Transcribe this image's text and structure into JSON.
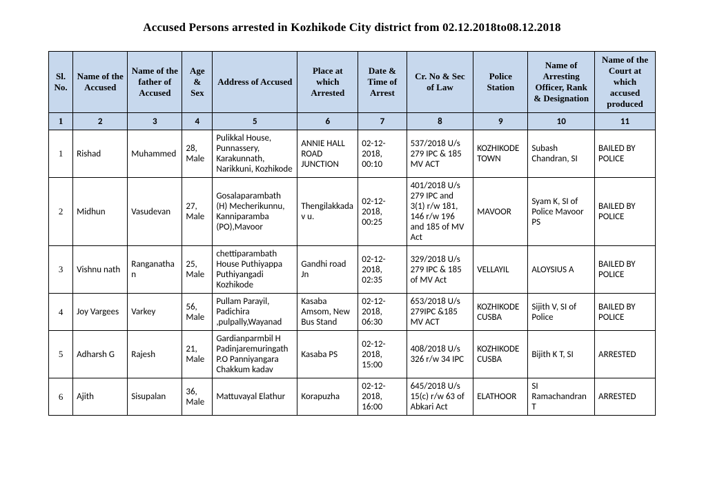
{
  "title": "Accused Persons arrested in    Kozhikode City    district from   02.12.2018to08.12.2018",
  "columns": [
    "Sl. No.",
    "Name of the Accused",
    "Name of the father of Accused",
    "Age & Sex",
    "Address of Accused",
    "Place at which Arrested",
    "Date & Time of Arrest",
    "Cr. No & Sec of Law",
    "Police Station",
    "Name of Arresting Officer, Rank & Designation",
    "Name of the Court at which accused produced"
  ],
  "numrow": [
    "1",
    "2",
    "3",
    "4",
    "5",
    "6",
    "7",
    "8",
    "9",
    "10",
    "11"
  ],
  "rows": [
    {
      "sl": "1",
      "name": "Rishad",
      "father": "Muhammed",
      "age_sex": "28, Male",
      "address": "Pulikkal House, Punnassery, Karakunnath, Narikkuni, Kozhikode",
      "place": "ANNIE HALL ROAD JUNCTION",
      "datetime": "02-12-2018, 00:10",
      "crno": "537/2018 U/s 279 IPC & 185 MV ACT",
      "station": "KOZHIKODE TOWN",
      "officer": "Subash Chandran, SI",
      "court": "BAILED BY POLICE"
    },
    {
      "sl": "2",
      "name": "Midhun",
      "father": "Vasudevan",
      "age_sex": "27, Male",
      "address": "Gosalaparambath (H) Mecherikunnu, Kanniparamba (PO),Mavoor",
      "place": "Thengilakkadav u.",
      "datetime": "02-12-2018, 00:25",
      "crno": "401/2018 U/s 279 IPC and 3(1) r/w 181, 146 r/w 196 and 185 of MV Act",
      "station": "MAVOOR",
      "officer": "Syam K, SI of Police Mavoor PS",
      "court": "BAILED BY POLICE"
    },
    {
      "sl": "3",
      "name": "Vishnu nath",
      "father": "Ranganathan",
      "age_sex": "25, Male",
      "address": "chettiparambath House Puthiyappa Puthiyangadi Kozhikode",
      "place": "Gandhi road Jn",
      "datetime": "02-12-2018, 02:35",
      "crno": "329/2018 U/s 279 IPC & 185 of MV Act",
      "station": "VELLAYIL",
      "officer": "ALOYSIUS A",
      "court": "BAILED BY POLICE"
    },
    {
      "sl": "4",
      "name": "Joy Vargees",
      "father": "Varkey",
      "age_sex": "56, Male",
      "address": "Pullam Parayil, Padichira ,pulpally,Wayanad",
      "place": "Kasaba Amsom, New Bus Stand",
      "datetime": "02-12-2018, 06:30",
      "crno": "653/2018 U/s 279IPC &185 MV ACT",
      "station": "KOZHIKODE CUSBA",
      "officer": "Sijith V, SI of Police",
      "court": "BAILED BY POLICE"
    },
    {
      "sl": "5",
      "name": "Adharsh G",
      "father": "Rajesh",
      "age_sex": "21, Male",
      "address": "Gardianparmbil H Padinjaremuringath P.O Panniyangara Chakkum kadav",
      "place": "Kasaba PS",
      "datetime": "02-12-2018, 15:00",
      "crno": "408/2018 U/s 326 r/w 34 IPC",
      "station": "KOZHIKODE CUSBA",
      "officer": "Bijith K T, SI",
      "court": "ARRESTED"
    },
    {
      "sl": "6",
      "name": "Ajith",
      "father": "Sisupalan",
      "age_sex": "36, Male",
      "address": "Mattuvayal Elathur",
      "place": "Korapuzha",
      "datetime": "02-12-2018, 16:00",
      "crno": "645/2018 U/s 15(c) r/w 63 of Abkari Act",
      "station": "ELATHOOR",
      "officer": "SI Ramachandran T",
      "court": "ARRESTED"
    }
  ]
}
